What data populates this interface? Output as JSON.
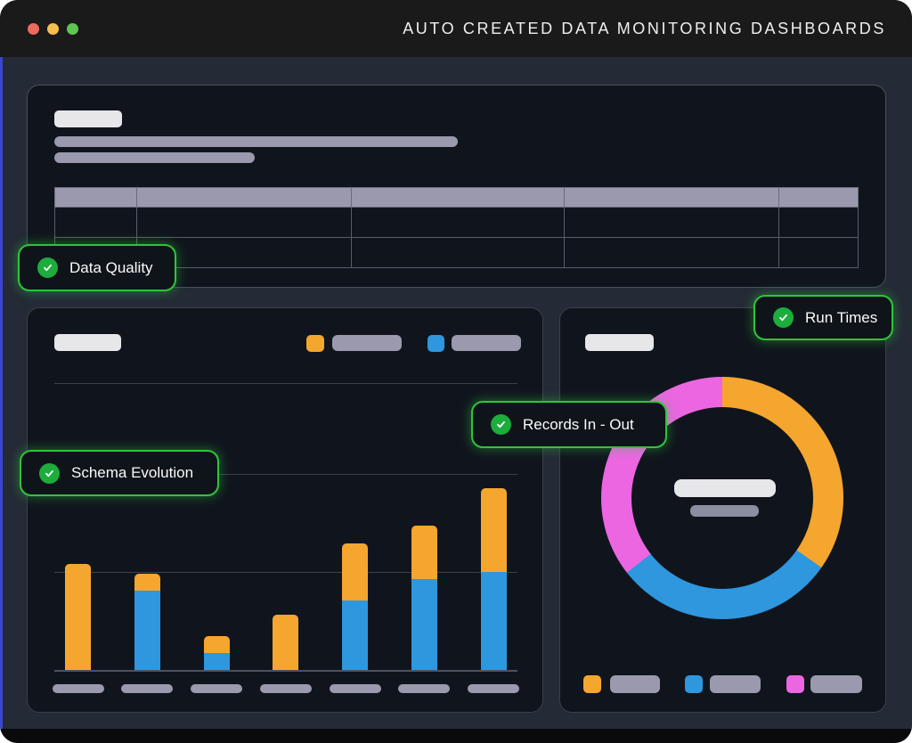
{
  "window": {
    "title": "AUTO CREATED DATA MONITORING DASHBOARDS",
    "traffic_lights": [
      "close",
      "minimize",
      "zoom"
    ]
  },
  "colors": {
    "accent_green": "#30C43A",
    "check_green": "#1CAD3C",
    "bar_orange": "#F5A62F",
    "bar_blue": "#2E97DE",
    "donut_magenta": "#EC66E2",
    "skeleton_lavender": "#9A99AD",
    "skeleton_white": "#E7E6E9",
    "panel_bg": "#10151D",
    "main_bg": "#242A36",
    "titlebar_bg": "#1A1A1A",
    "edge_blue": "#3A45D3",
    "traffic_red": "#ED6A5E",
    "traffic_yellow": "#F4BF4F",
    "traffic_green": "#61C554"
  },
  "badges": {
    "data_quality": {
      "label": "Data Quality",
      "icon": "check-circle"
    },
    "schema_evolution": {
      "label": "Schema Evolution",
      "icon": "check-circle"
    },
    "records_in_out": {
      "label": "Records In - Out",
      "icon": "check-circle"
    },
    "run_times": {
      "label": "Run Times",
      "icon": "check-circle"
    }
  },
  "skeleton_table": {
    "columns_pct": [
      10.3,
      26.7,
      26.5,
      26.7,
      9.8
    ],
    "header_rows": 1,
    "body_rows": 2,
    "note": "placeholder table - header row filled lavender, no text visible"
  },
  "chart_data": [
    {
      "id": "schema-evolution-bar-chart",
      "type": "bar",
      "stacked": true,
      "title": "",
      "categories": [
        "bar-1",
        "bar-2",
        "bar-3",
        "bar-4",
        "bar-5",
        "bar-6",
        "bar-7"
      ],
      "category_labels_visible": false,
      "series": [
        {
          "name": "blue-bottom",
          "color_key": "bar_blue",
          "values": [
            0,
            89,
            19,
            0,
            78,
            102,
            110
          ]
        },
        {
          "name": "orange-top",
          "color_key": "bar_orange",
          "values": [
            119,
            19,
            19,
            62,
            64,
            60,
            94
          ]
        }
      ],
      "units": "estimated pixel heights (skeleton chart, no numeric axis shown)",
      "gridlines": 2,
      "legend_position": "top-right",
      "legend": [
        {
          "color_key": "bar_orange",
          "label_visible": false
        },
        {
          "color_key": "bar_blue",
          "label_visible": false
        }
      ]
    },
    {
      "id": "run-times-donut",
      "type": "pie",
      "donut": true,
      "start_angle_deg": 0,
      "slices": [
        {
          "name": "orange",
          "color_key": "bar_orange",
          "angle_deg": 125,
          "pct": 34.7
        },
        {
          "name": "blue",
          "color_key": "bar_blue",
          "angle_deg": 107,
          "pct": 29.7
        },
        {
          "name": "magenta",
          "color_key": "donut_magenta",
          "angle_deg": 128,
          "pct": 35.6
        }
      ],
      "center_labels_visible": false,
      "legend_position": "bottom",
      "legend": [
        {
          "color_key": "bar_orange",
          "label_visible": false
        },
        {
          "color_key": "bar_blue",
          "label_visible": false
        },
        {
          "color_key": "donut_magenta",
          "label_visible": false
        }
      ]
    }
  ]
}
